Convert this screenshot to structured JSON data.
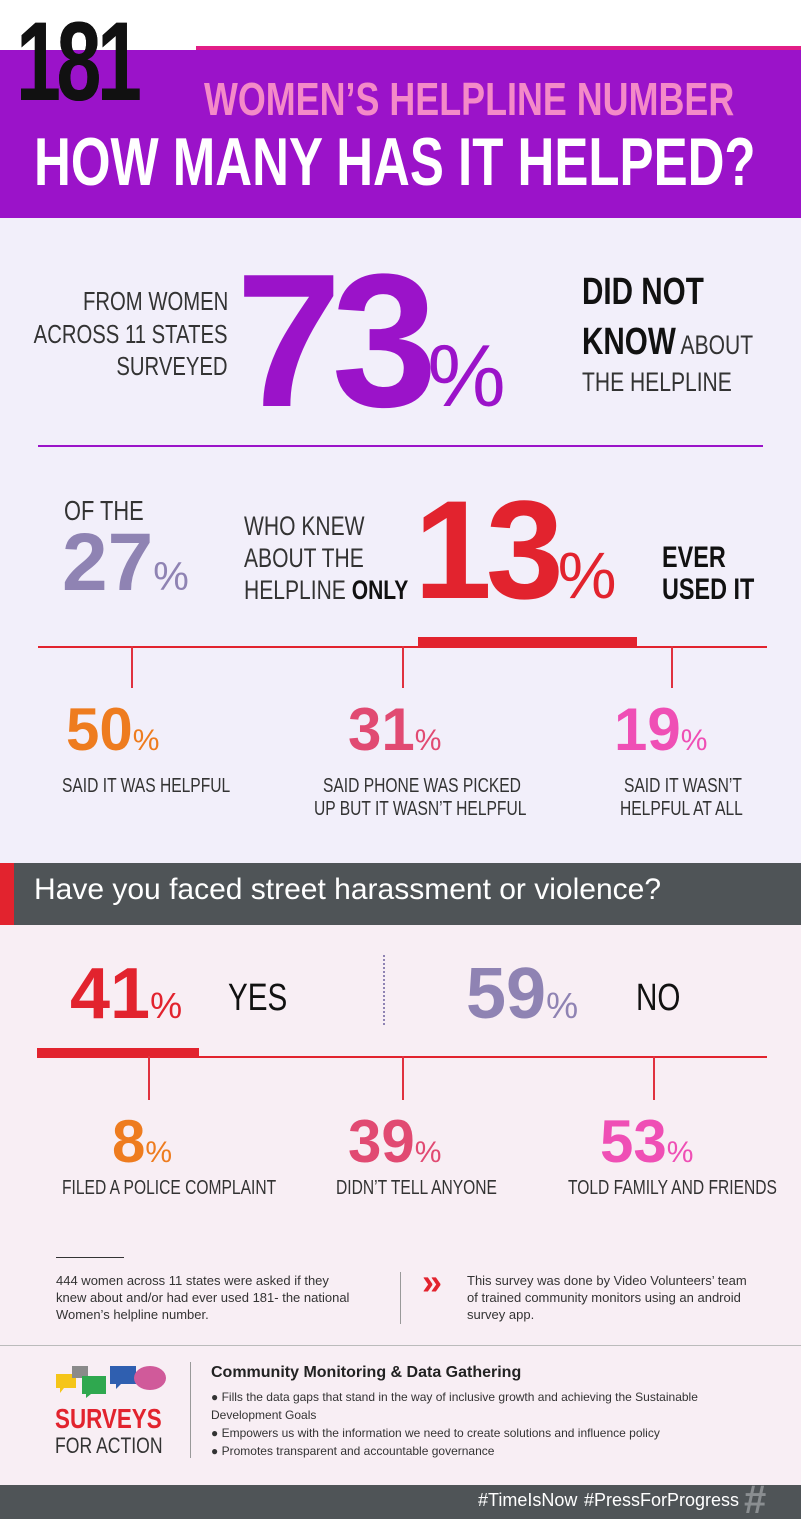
{
  "header": {
    "number": "181",
    "subtitle": "WOMEN’S HELPLINE NUMBER",
    "title": "HOW MANY HAS IT HELPED?"
  },
  "awareness": {
    "intro_line1": "FROM WOMEN",
    "intro_line2": "ACROSS 11 STATES",
    "intro_line3": "SURVEYED",
    "value": "73",
    "percent_sign": "%",
    "result_line1": "DID NOT",
    "result_line2_bold": "KNOW",
    "result_line2_rest": " ABOUT",
    "result_line3": "THE HELPLINE"
  },
  "usage": {
    "prefix": "OF THE",
    "base_value": "27",
    "base_pct": "%",
    "middle_line1": "WHO KNEW",
    "middle_line2": "ABOUT THE",
    "middle_line3_plain": "HELPLINE ",
    "middle_line3_bold": "ONLY",
    "value": "13",
    "pct": "%",
    "result_line1": "EVER",
    "result_line2": "USED IT"
  },
  "usage_breakdown": [
    {
      "value": "50",
      "pct": "%",
      "line1": "SAID IT WAS HELPFUL",
      "line2": ""
    },
    {
      "value": "31",
      "pct": "%",
      "line1": "SAID PHONE WAS PICKED",
      "line2": "UP BUT IT WASN’T HELPFUL"
    },
    {
      "value": "19",
      "pct": "%",
      "line1": "SAID IT WASN’T",
      "line2": "HELPFUL AT ALL"
    }
  ],
  "question": "Have you faced street harassment or violence?",
  "harassment": {
    "yes_value": "41",
    "yes_pct": "%",
    "yes_label": "YES",
    "no_value": "59",
    "no_pct": "%",
    "no_label": "NO"
  },
  "harassment_breakdown": [
    {
      "value": "8",
      "pct": "%",
      "label": "FILED A POLICE COMPLAINT"
    },
    {
      "value": "39",
      "pct": "%",
      "label": "DIDN’T TELL ANYONE"
    },
    {
      "value": "53",
      "pct": "%",
      "label": "TOLD FAMILY AND FRIENDS"
    }
  ],
  "notes": {
    "left_line1": "444 women across 11 states were asked if they",
    "left_line2": "knew about and/or had ever used 181- the national",
    "left_line3": "Women’s helpline number.",
    "arrow_glyph": "»",
    "right_line1": "This survey was done by Video Volunteers’ team",
    "right_line2": "of trained community monitors using an android",
    "right_line3": "survey app."
  },
  "footer": {
    "logo_line1": "SURVEYS",
    "logo_line2": "FOR ACTION",
    "heading": "Community Monitoring & Data Gathering",
    "bullets": [
      "Fills the data gaps that stand in the way of inclusive growth and achieving the Sustainable",
      "Development Goals",
      "Empowers us with the information we need to create solutions and influence policy",
      "Promotes transparent and accountable governance"
    ],
    "hashtag1": "#TimeIsNow",
    "hashtag2": "#PressForProgress",
    "hash_glyph": "#"
  },
  "colors": {
    "purple": "#9b13c9",
    "pink": "#e21d86",
    "red": "#e2232e",
    "lavender": "#8f83b3",
    "orange": "#ee7c1f",
    "rose": "#e14a72",
    "magenta": "#ef4fb5",
    "dark": "#4f5457"
  }
}
